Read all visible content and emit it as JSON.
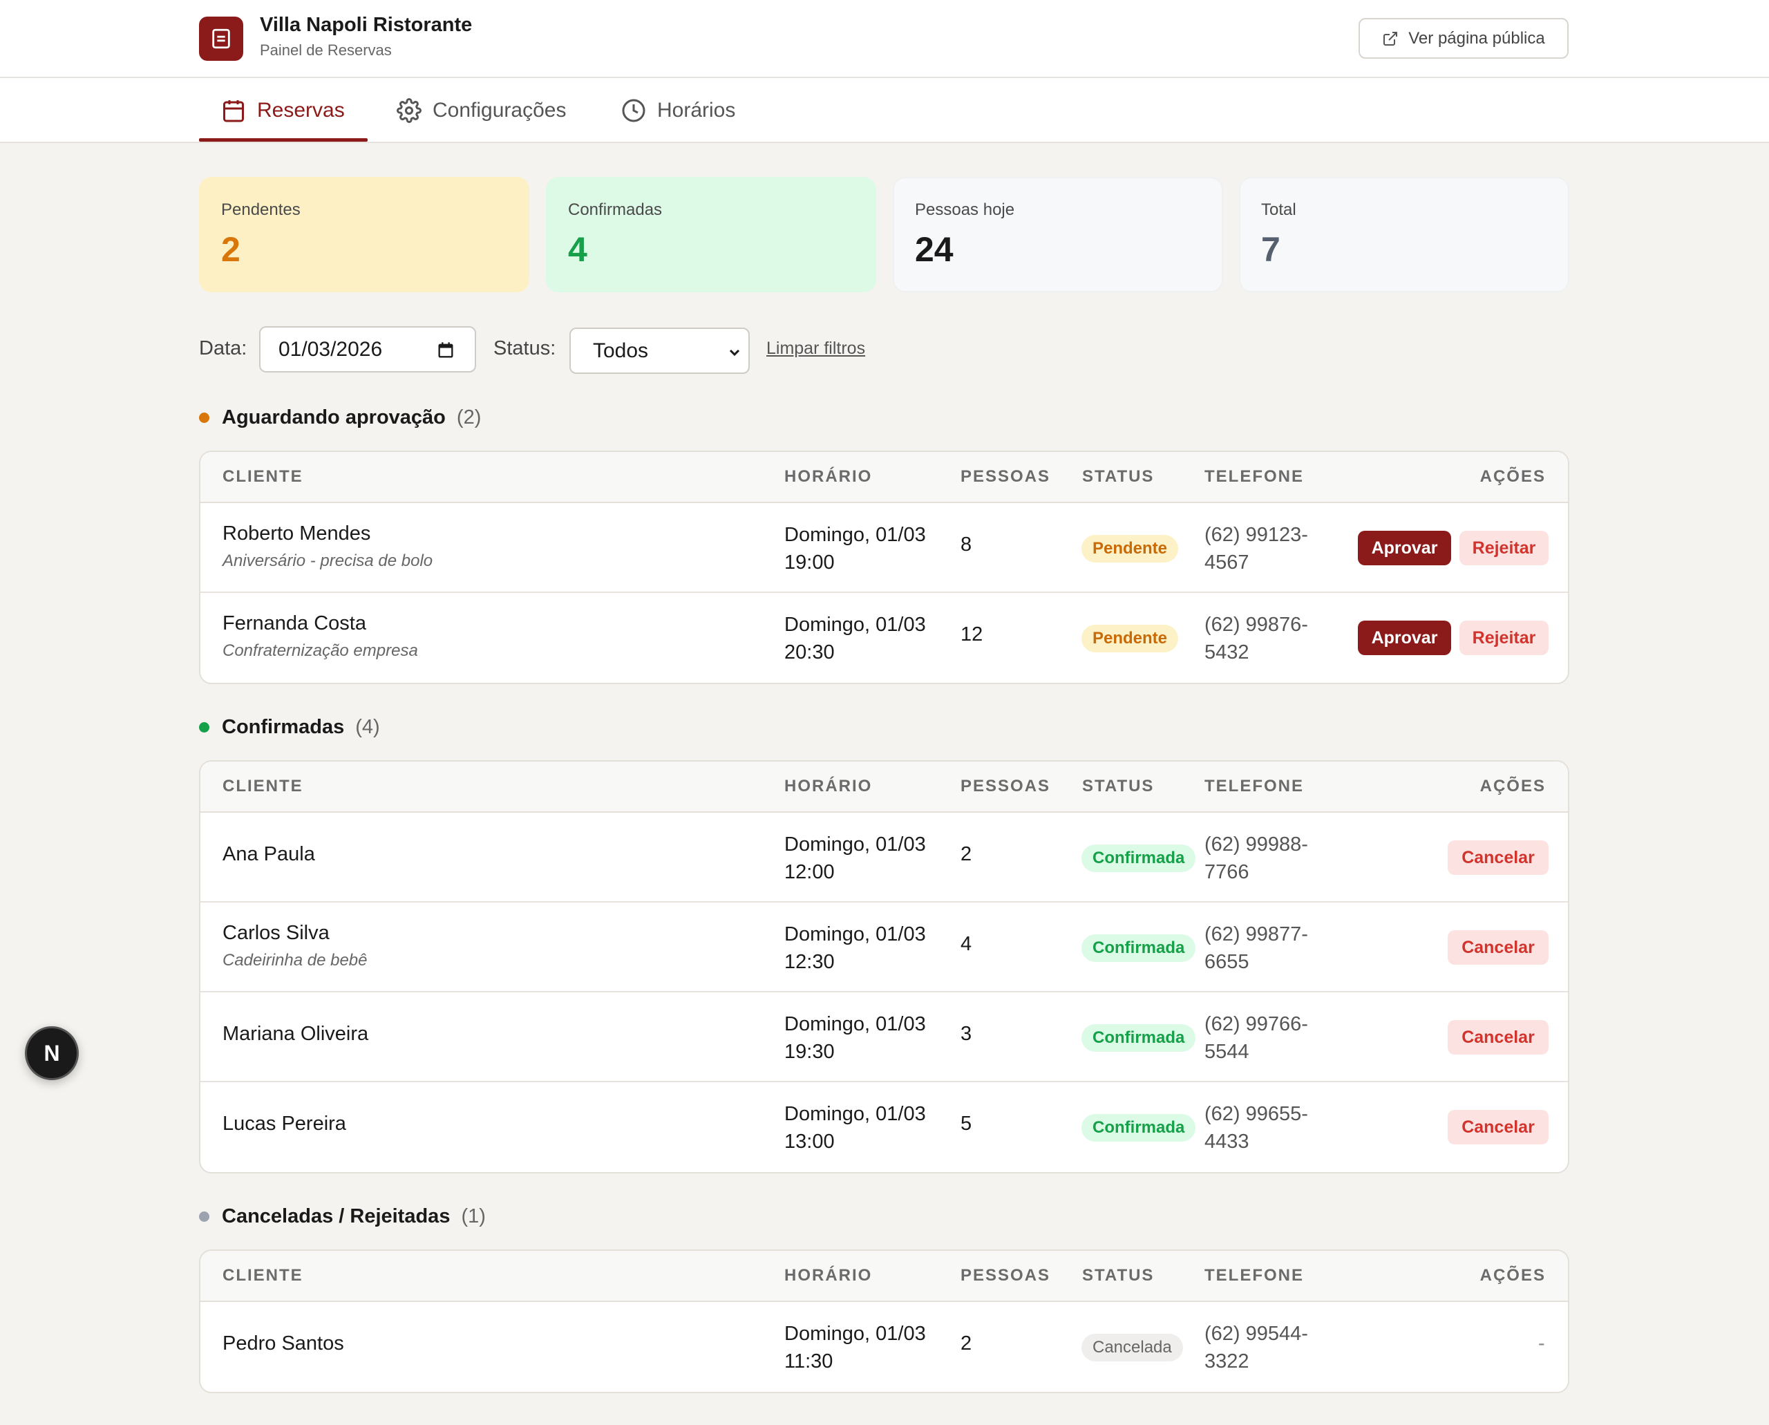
{
  "header": {
    "brand_title": "Villa Napoli Ristorante",
    "brand_subtitle": "Painel de Reservas",
    "public_page_button": "Ver página pública"
  },
  "tabs": [
    {
      "label": "Reservas",
      "icon": "calendar-icon",
      "active": true
    },
    {
      "label": "Configurações",
      "icon": "gear-icon",
      "active": false
    },
    {
      "label": "Horários",
      "icon": "clock-icon",
      "active": false
    }
  ],
  "stats": [
    {
      "label": "Pendentes",
      "value": "2",
      "bg": "#fdf0c4",
      "color": "#d9760a"
    },
    {
      "label": "Confirmadas",
      "value": "4",
      "bg": "#dcfae6",
      "color": "#16a049"
    },
    {
      "label": "Pessoas hoje",
      "value": "24",
      "bg": "#f7f8f9",
      "color": "#1a1a1a"
    },
    {
      "label": "Total",
      "value": "7",
      "bg": "#f7f8f9",
      "color": "#555f6d"
    }
  ],
  "filters": {
    "date_label": "Data:",
    "date_value": "01/03/2026",
    "status_label": "Status:",
    "status_value": "Todos",
    "clear_label": "Limpar filtros"
  },
  "columns": {
    "client": "CLIENTE",
    "time": "HORÁRIO",
    "people": "PESSOAS",
    "status": "STATUS",
    "phone": "TELEFONE",
    "actions": "AÇÕES"
  },
  "sections": {
    "pending": {
      "title": "Aguardando aprovação",
      "count": "(2)",
      "dot_color": "#d9760a",
      "rows": [
        {
          "name": "Roberto Mendes",
          "note": "Aniversário - precisa de bolo",
          "time1": "Domingo, 01/03",
          "time2": "19:00",
          "people": "8",
          "status": "Pendente",
          "phone1": "(62) 99123-",
          "phone2": "4567",
          "approve": "Aprovar",
          "reject": "Rejeitar"
        },
        {
          "name": "Fernanda Costa",
          "note": "Confraternização empresa",
          "time1": "Domingo, 01/03",
          "time2": "20:30",
          "people": "12",
          "status": "Pendente",
          "phone1": "(62) 99876-",
          "phone2": "5432",
          "approve": "Aprovar",
          "reject": "Rejeitar"
        }
      ]
    },
    "confirmed": {
      "title": "Confirmadas",
      "count": "(4)",
      "dot_color": "#16a049",
      "rows": [
        {
          "name": "Ana Paula",
          "note": "",
          "time1": "Domingo, 01/03",
          "time2": "12:00",
          "people": "2",
          "status": "Confirmada",
          "phone1": "(62) 99988-",
          "phone2": "7766",
          "cancel": "Cancelar"
        },
        {
          "name": "Carlos Silva",
          "note": "Cadeirinha de bebê",
          "time1": "Domingo, 01/03",
          "time2": "12:30",
          "people": "4",
          "status": "Confirmada",
          "phone1": "(62) 99877-",
          "phone2": "6655",
          "cancel": "Cancelar"
        },
        {
          "name": "Mariana Oliveira",
          "note": "",
          "time1": "Domingo, 01/03",
          "time2": "19:30",
          "people": "3",
          "status": "Confirmada",
          "phone1": "(62) 99766-",
          "phone2": "5544",
          "cancel": "Cancelar"
        },
        {
          "name": "Lucas Pereira",
          "note": "",
          "time1": "Domingo, 01/03",
          "time2": "13:00",
          "people": "5",
          "status": "Confirmada",
          "phone1": "(62) 99655-",
          "phone2": "4433",
          "cancel": "Cancelar"
        }
      ]
    },
    "cancelled": {
      "title": "Canceladas / Rejeitadas",
      "count": "(1)",
      "dot_color": "#9ca3af",
      "rows": [
        {
          "name": "Pedro Santos",
          "note": "",
          "time1": "Domingo, 01/03",
          "time2": "11:30",
          "people": "2",
          "status": "Cancelada",
          "phone1": "(62) 99544-",
          "phone2": "3322",
          "action_placeholder": "-"
        }
      ]
    }
  },
  "floating_badge": "N"
}
